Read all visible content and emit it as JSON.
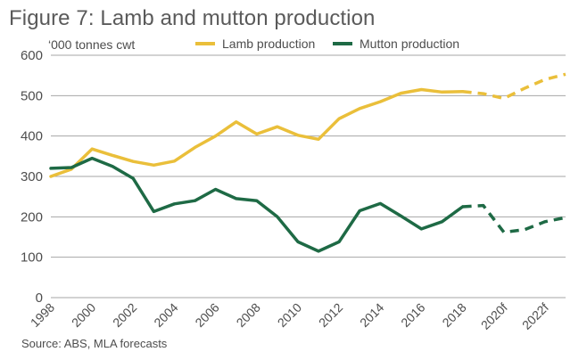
{
  "title": "Figure 7: Lamb and mutton production",
  "source": "Source: ABS, MLA forecasts",
  "colors": {
    "lamb": "#eabf3a",
    "mutton": "#1e6a45",
    "grid": "#a6a6a6",
    "axis_text": "#4d4d4d"
  },
  "chart_data": {
    "type": "line",
    "ylabel": "‘000 tonnes cwt",
    "ylim": [
      0,
      600
    ],
    "yticks": [
      0,
      100,
      200,
      300,
      400,
      500,
      600
    ],
    "x_labels": [
      "1998",
      "2000",
      "2002",
      "2004",
      "2006",
      "2008",
      "2010",
      "2012",
      "2014",
      "2016",
      "2018",
      "2020f",
      "2022f"
    ],
    "legend_position": "top",
    "grid": true,
    "x": [
      1998,
      1999,
      2000,
      2001,
      2002,
      2003,
      2004,
      2005,
      2006,
      2007,
      2008,
      2009,
      2010,
      2011,
      2012,
      2013,
      2014,
      2015,
      2016,
      2017,
      2018,
      2019,
      2020,
      2021,
      2022,
      2023
    ],
    "forecast_from": 2018,
    "series": [
      {
        "name": "Lamb production",
        "color": "#eabf3a",
        "values": [
          300,
          318,
          368,
          352,
          337,
          328,
          338,
          372,
          400,
          435,
          405,
          423,
          402,
          392,
          443,
          468,
          485,
          506,
          515,
          509,
          510,
          505,
          493,
          518,
          540,
          553
        ]
      },
      {
        "name": "Mutton production",
        "color": "#1e6a45",
        "values": [
          320,
          322,
          345,
          325,
          295,
          213,
          232,
          240,
          268,
          245,
          240,
          200,
          138,
          115,
          138,
          215,
          233,
          202,
          170,
          188,
          225,
          228,
          162,
          168,
          188,
          198
        ]
      }
    ]
  }
}
